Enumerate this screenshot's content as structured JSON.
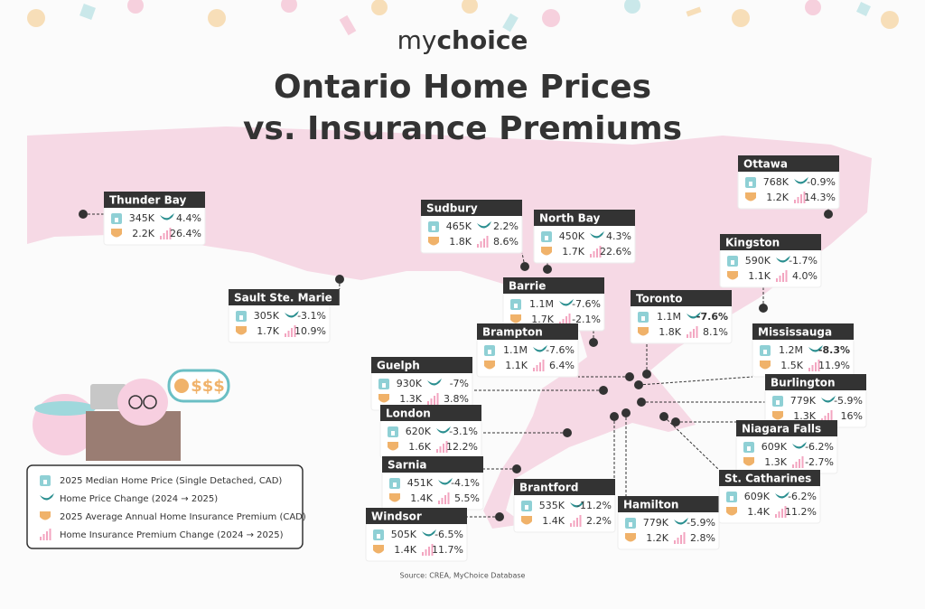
{
  "logo": {
    "parts": [
      "my",
      "choice"
    ]
  },
  "title_lines": [
    "Ontario Home Prices",
    "vs. Insurance Premiums"
  ],
  "illustration": {
    "bubble": "$$$"
  },
  "cities": [
    {
      "name": "Thunder Bay",
      "price": "345K",
      "price_change": "4.4%",
      "premium": "2.2K",
      "premium_change": "26.4%"
    },
    {
      "name": "Sault Ste. Marie",
      "price": "305K",
      "price_change": "-3.1%",
      "premium": "1.7K",
      "premium_change": "10.9%"
    },
    {
      "name": "Sudbury",
      "price": "465K",
      "price_change": "2.2%",
      "premium": "1.8K",
      "premium_change": "8.6%"
    },
    {
      "name": "North Bay",
      "price": "450K",
      "price_change": "4.3%",
      "premium": "1.7K",
      "premium_change": "22.6%"
    },
    {
      "name": "Barrie",
      "price": "1.1M",
      "price_change": "-7.6%",
      "premium": "1.7K",
      "premium_change": "-2.1%"
    },
    {
      "name": "Toronto",
      "price": "1.1M",
      "price_change": "-7.6%",
      "premium": "1.8K",
      "premium_change": "8.1%"
    },
    {
      "name": "Brampton",
      "price": "1.1M",
      "price_change": "-7.6%",
      "premium": "1.1K",
      "premium_change": "6.4%"
    },
    {
      "name": "Mississauga",
      "price": "1.2M",
      "price_change": "-8.3%",
      "premium": "1.5K",
      "premium_change": "11.9%"
    },
    {
      "name": "Guelph",
      "price": "930K",
      "price_change": "-7%",
      "premium": "1.3K",
      "premium_change": "3.8%"
    },
    {
      "name": "Burlington",
      "price": "779K",
      "price_change": "-5.9%",
      "premium": "1.3K",
      "premium_change": "16%"
    },
    {
      "name": "London",
      "price": "620K",
      "price_change": "-3.1%",
      "premium": "1.6K",
      "premium_change": "12.2%"
    },
    {
      "name": "Niagara Falls",
      "price": "609K",
      "price_change": "-6.2%",
      "premium": "1.3K",
      "premium_change": "-2.7%"
    },
    {
      "name": "Sarnia",
      "price": "451K",
      "price_change": "-4.1%",
      "premium": "1.4K",
      "premium_change": "5.5%"
    },
    {
      "name": "Brantford",
      "price": "535K",
      "price_change": "-11.2%",
      "premium": "1.4K",
      "premium_change": "2.2%"
    },
    {
      "name": "Hamilton",
      "price": "779K",
      "price_change": "-5.9%",
      "premium": "1.2K",
      "premium_change": "2.8%"
    },
    {
      "name": "St. Catharines",
      "price": "609K",
      "price_change": "-6.2%",
      "premium": "1.4K",
      "premium_change": "11.2%"
    },
    {
      "name": "Windsor",
      "price": "505K",
      "price_change": "-6.5%",
      "premium": "1.4K",
      "premium_change": "11.7%"
    },
    {
      "name": "Ottawa",
      "price": "768K",
      "price_change": "-0.9%",
      "premium": "1.2K",
      "premium_change": "14.3%"
    },
    {
      "name": "Kingston",
      "price": "590K",
      "price_change": "-1.7%",
      "premium": "1.1K",
      "premium_change": "4.0%"
    }
  ],
  "legend": [
    "2025 Median Home Price (Single Detached, CAD)",
    "Home Price Change (2024 → 2025)",
    "2025 Average Annual Home Insurance Premium (CAD)",
    "Home Insurance Premium Change (2024 → 2025)"
  ],
  "source": "Source: CREA, MyChoice Database"
}
